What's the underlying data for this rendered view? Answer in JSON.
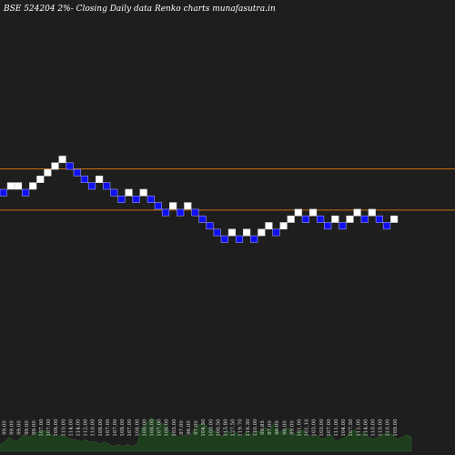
{
  "title": "BSE 524204  2%-  Closing Daily data  Renko  charts munafasutra.in",
  "colors": {
    "background": "#1e1e1e",
    "up_brick": "#ffffff",
    "down_brick": "#1010ee",
    "brick_border": "#9999ff",
    "level_line": "#c87010",
    "volume": "#1d3d1d",
    "volume_edge": "#2c5a2c"
  },
  "chart_data": {
    "type": "renko",
    "title": "BSE 524204  2%-  Closing Daily data  Renko  charts munafasutra.in",
    "brick_size_pct": 2,
    "bricks": [
      {
        "dir": "down",
        "level": 0
      },
      {
        "dir": "up",
        "level": 1
      },
      {
        "dir": "up",
        "level": 1
      },
      {
        "dir": "down",
        "level": 0
      },
      {
        "dir": "up",
        "level": 1
      },
      {
        "dir": "up",
        "level": 2
      },
      {
        "dir": "up",
        "level": 3
      },
      {
        "dir": "up",
        "level": 4
      },
      {
        "dir": "up",
        "level": 5
      },
      {
        "dir": "down",
        "level": 4
      },
      {
        "dir": "down",
        "level": 3
      },
      {
        "dir": "down",
        "level": 2
      },
      {
        "dir": "down",
        "level": 1
      },
      {
        "dir": "up",
        "level": 2
      },
      {
        "dir": "down",
        "level": 1
      },
      {
        "dir": "down",
        "level": 0
      },
      {
        "dir": "down",
        "level": -1
      },
      {
        "dir": "up",
        "level": 0
      },
      {
        "dir": "down",
        "level": -1
      },
      {
        "dir": "up",
        "level": 0
      },
      {
        "dir": "down",
        "level": -1
      },
      {
        "dir": "down",
        "level": -2
      },
      {
        "dir": "down",
        "level": -3
      },
      {
        "dir": "up",
        "level": -2
      },
      {
        "dir": "down",
        "level": -3
      },
      {
        "dir": "up",
        "level": -2
      },
      {
        "dir": "down",
        "level": -3
      },
      {
        "dir": "down",
        "level": -4
      },
      {
        "dir": "down",
        "level": -5
      },
      {
        "dir": "down",
        "level": -6
      },
      {
        "dir": "down",
        "level": -7
      },
      {
        "dir": "up",
        "level": -6
      },
      {
        "dir": "down",
        "level": -7
      },
      {
        "dir": "up",
        "level": -6
      },
      {
        "dir": "down",
        "level": -7
      },
      {
        "dir": "up",
        "level": -6
      },
      {
        "dir": "up",
        "level": -5
      },
      {
        "dir": "down",
        "level": -6
      },
      {
        "dir": "up",
        "level": -5
      },
      {
        "dir": "up",
        "level": -4
      },
      {
        "dir": "up",
        "level": -3
      },
      {
        "dir": "down",
        "level": -4
      },
      {
        "dir": "up",
        "level": -3
      },
      {
        "dir": "down",
        "level": -4
      },
      {
        "dir": "down",
        "level": -5
      },
      {
        "dir": "up",
        "level": -4
      },
      {
        "dir": "down",
        "level": -5
      },
      {
        "dir": "up",
        "level": -4
      },
      {
        "dir": "up",
        "level": -3
      },
      {
        "dir": "down",
        "level": -4
      },
      {
        "dir": "up",
        "level": -3
      },
      {
        "dir": "down",
        "level": -4
      },
      {
        "dir": "down",
        "level": -5
      },
      {
        "dir": "up",
        "level": -4
      }
    ],
    "level_lines": [
      {
        "name": "upper",
        "level": 3
      },
      {
        "name": "lower",
        "level": -3
      }
    ],
    "x_labels": [
      "99.00",
      "99.00",
      "99.00",
      "99.00",
      "99.00",
      "107.00",
      "107.00",
      "108.00",
      "110.00",
      "114.00",
      "114.00",
      "112.00",
      "110.00",
      "108.00",
      "107.00",
      "107.00",
      "108.00",
      "107.00",
      "108.00",
      "106.00",
      "108.00",
      "107.00",
      "106.00",
      "103.00",
      "97.00",
      "96.00",
      "97.00",
      "104.50",
      "100.00",
      "106.50",
      "115.80",
      "127.50",
      "119.70",
      "116.30",
      "110.00",
      "99.85",
      "97.00",
      "96.00",
      "98.00",
      "99.00",
      "101.00",
      "101.10",
      "103.00",
      "103.00",
      "107.00",
      "111.00",
      "104.00",
      "107.50",
      "111.00",
      "114.00",
      "110.00",
      "110.00",
      "110.00",
      "109.00"
    ],
    "volume": [
      3,
      4,
      6,
      4,
      5,
      7,
      6,
      7,
      8,
      9,
      8,
      7,
      6,
      7,
      6,
      5,
      5,
      4,
      5,
      4,
      4,
      3,
      4,
      3,
      2,
      3,
      2,
      3,
      2,
      3,
      10,
      12,
      14,
      13,
      12,
      11,
      8,
      7,
      6,
      7,
      6,
      9,
      11,
      12,
      10,
      9,
      8,
      6,
      9,
      7,
      8,
      6,
      8,
      7,
      9,
      8,
      10,
      9,
      12,
      8,
      9,
      10,
      7,
      8,
      9,
      7,
      6,
      7,
      5,
      6,
      7,
      4,
      5,
      6,
      8,
      9,
      7,
      8,
      6,
      5,
      6,
      7,
      8,
      7,
      5,
      6,
      7,
      6
    ]
  }
}
